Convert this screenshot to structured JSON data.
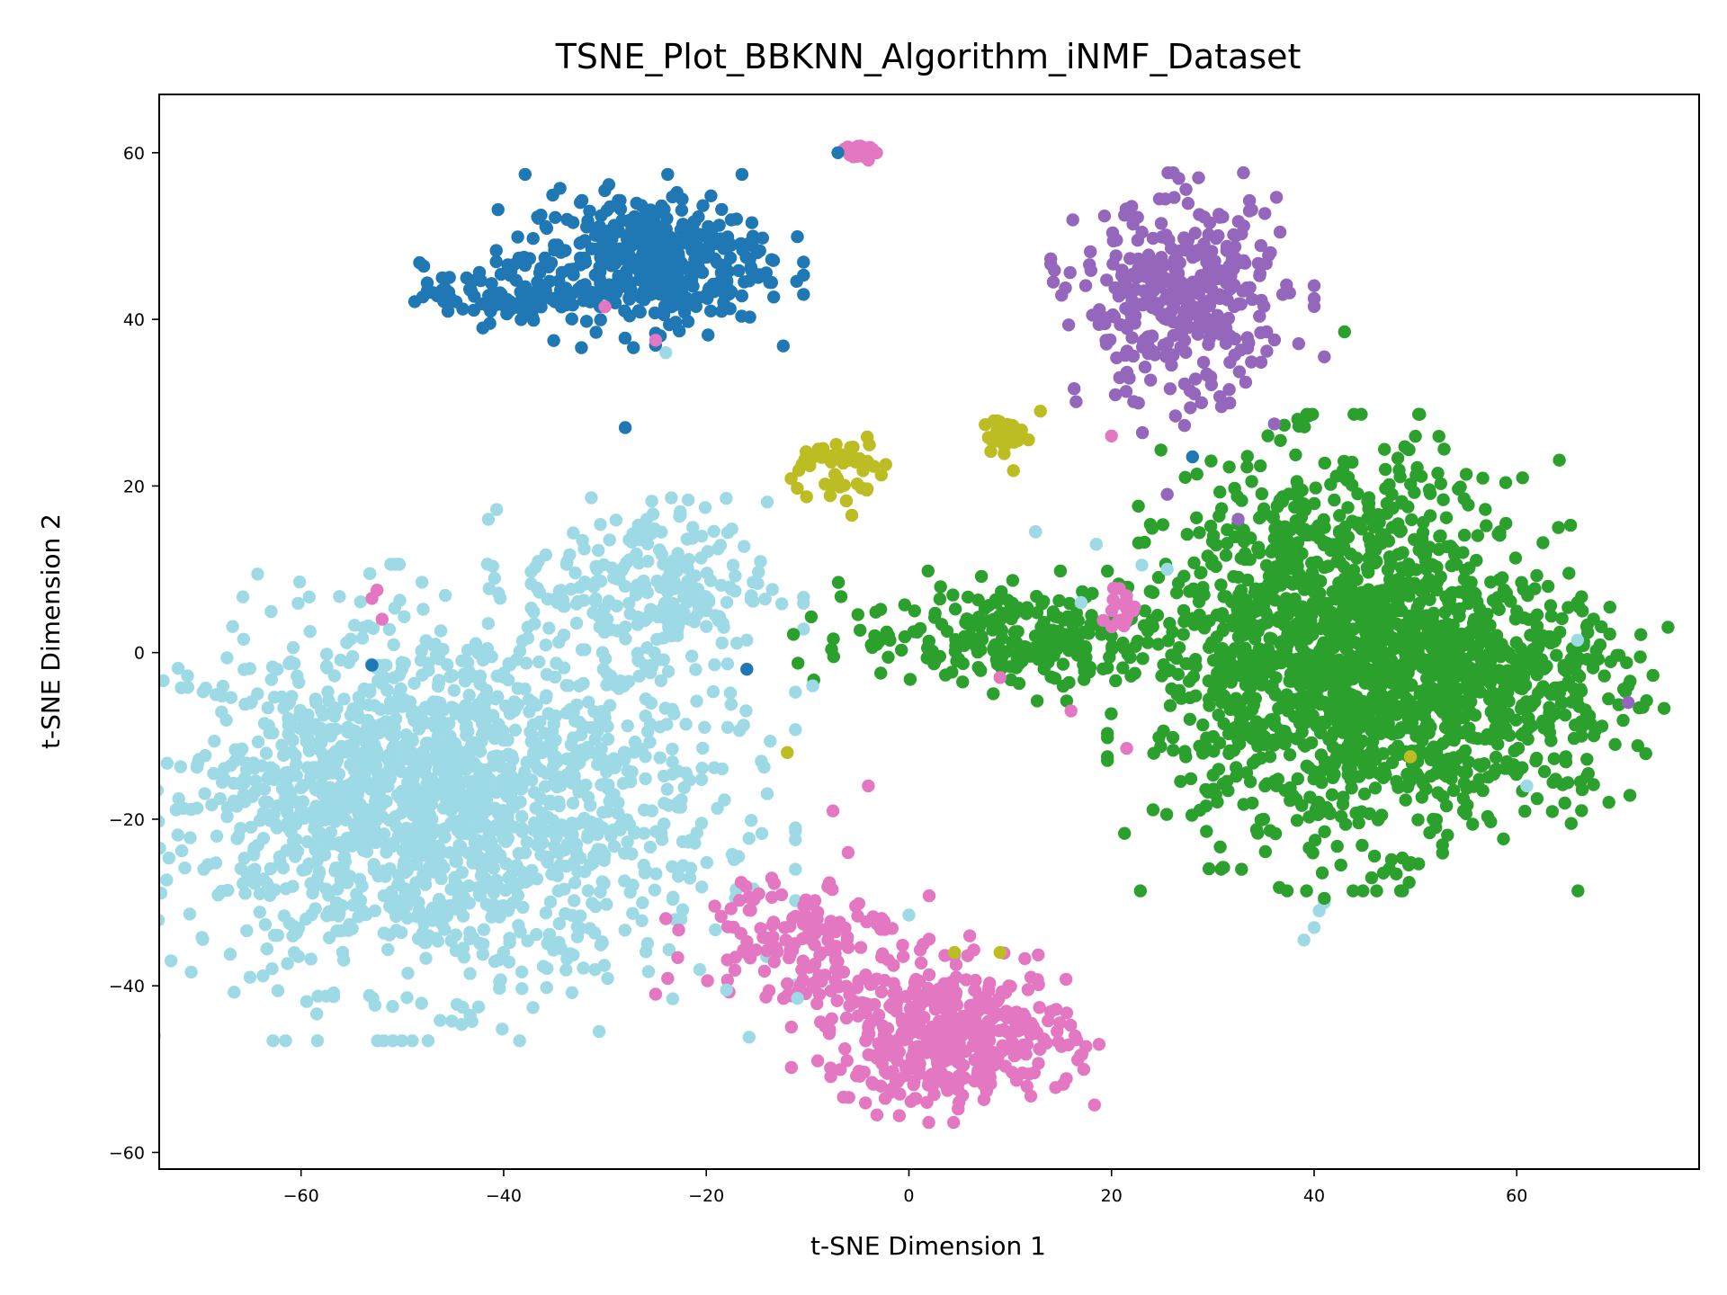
{
  "chart_data": {
    "type": "scatter",
    "title": "TSNE_Plot_BBKNN_Algorithm_iNMF_Dataset",
    "xlabel": "t-SNE Dimension 1",
    "ylabel": "t-SNE Dimension 2",
    "xlim": [
      -74,
      78
    ],
    "ylim": [
      -62,
      67
    ],
    "x_ticks": [
      -60,
      -40,
      -20,
      0,
      20,
      40,
      60
    ],
    "x_tick_labels": [
      "−60",
      "−40",
      "−20",
      "0",
      "20",
      "40",
      "60"
    ],
    "y_ticks": [
      -60,
      -40,
      -20,
      0,
      20,
      40,
      60
    ],
    "y_tick_labels": [
      "−60",
      "−40",
      "−20",
      "0",
      "20",
      "40",
      "60"
    ],
    "grid": false,
    "legend": "none",
    "clusters": [
      {
        "color": "#9edae5",
        "center": [
          -45,
          -18
        ],
        "spread": [
          13,
          11
        ],
        "count": 1500
      },
      {
        "color": "#9edae5",
        "center": [
          -26,
          8
        ],
        "spread": [
          6,
          5
        ],
        "count": 220
      },
      {
        "color": "#9edae5",
        "center": [
          -58,
          -16
        ],
        "spread": [
          6,
          6
        ],
        "count": 180
      },
      {
        "color": "#1f77b4",
        "center": [
          -26,
          47
        ],
        "spread": [
          6,
          4
        ],
        "count": 420
      },
      {
        "color": "#1f77b4",
        "center": [
          -40,
          43
        ],
        "spread": [
          4,
          1.8
        ],
        "count": 100
      },
      {
        "color": "#2ca02c",
        "center": [
          43,
          0
        ],
        "spread": [
          9,
          11
        ],
        "count": 1500
      },
      {
        "color": "#2ca02c",
        "center": [
          58,
          -5
        ],
        "spread": [
          7,
          6
        ],
        "count": 350
      },
      {
        "color": "#2ca02c",
        "center": [
          12,
          2
        ],
        "spread": [
          9,
          3
        ],
        "count": 260
      },
      {
        "color": "#9467bd",
        "center": [
          27,
          42
        ],
        "spread": [
          5,
          6
        ],
        "count": 380
      },
      {
        "color": "#e377c2",
        "center": [
          4,
          -46
        ],
        "spread": [
          6,
          4
        ],
        "count": 450
      },
      {
        "color": "#e377c2",
        "center": [
          -11,
          -34
        ],
        "spread": [
          5,
          4
        ],
        "count": 140
      },
      {
        "color": "#e377c2",
        "center": [
          -5,
          60
        ],
        "spread": [
          0.7,
          0.7
        ],
        "count": 30
      },
      {
        "color": "#e377c2",
        "center": [
          21,
          5
        ],
        "spread": [
          1.2,
          1.2
        ],
        "count": 20
      },
      {
        "color": "#bcbd22",
        "center": [
          -7,
          22
        ],
        "spread": [
          2.2,
          2.2
        ],
        "count": 45
      },
      {
        "color": "#bcbd22",
        "center": [
          11,
          26
        ],
        "spread": [
          2,
          1.6
        ],
        "count": 30
      }
    ],
    "points": [
      {
        "color": "#1f77b4",
        "x": -7,
        "y": 60
      },
      {
        "color": "#1f77b4",
        "x": -28,
        "y": 27
      },
      {
        "color": "#1f77b4",
        "x": -53,
        "y": -1.5
      },
      {
        "color": "#1f77b4",
        "x": -16,
        "y": -2
      },
      {
        "color": "#1f77b4",
        "x": 28,
        "y": 23.5
      },
      {
        "color": "#e377c2",
        "x": -30,
        "y": 41.5
      },
      {
        "color": "#e377c2",
        "x": -25,
        "y": 37.5
      },
      {
        "color": "#e377c2",
        "x": -52.5,
        "y": 7.5
      },
      {
        "color": "#e377c2",
        "x": -53,
        "y": 6.5
      },
      {
        "color": "#e377c2",
        "x": -52,
        "y": 4
      },
      {
        "color": "#e377c2",
        "x": 20,
        "y": 26
      },
      {
        "color": "#e377c2",
        "x": 12.5,
        "y": 14.5
      },
      {
        "color": "#e377c2",
        "x": 9,
        "y": -3
      },
      {
        "color": "#e377c2",
        "x": 16,
        "y": -7
      },
      {
        "color": "#e377c2",
        "x": 21.5,
        "y": -11.5
      },
      {
        "color": "#e377c2",
        "x": -4,
        "y": -16
      },
      {
        "color": "#e377c2",
        "x": -7.5,
        "y": -19
      },
      {
        "color": "#e377c2",
        "x": -6,
        "y": -24
      },
      {
        "color": "#e377c2",
        "x": 6,
        "y": -34
      },
      {
        "color": "#e377c2",
        "x": -25,
        "y": -41
      },
      {
        "color": "#e377c2",
        "x": -9,
        "y": -49
      },
      {
        "color": "#9edae5",
        "x": -24,
        "y": 36
      },
      {
        "color": "#9edae5",
        "x": 12.5,
        "y": 14.5
      },
      {
        "color": "#9edae5",
        "x": 18.5,
        "y": 13
      },
      {
        "color": "#9edae5",
        "x": 23,
        "y": 10.5
      },
      {
        "color": "#9edae5",
        "x": 25.5,
        "y": 10
      },
      {
        "color": "#9edae5",
        "x": 17,
        "y": 6
      },
      {
        "color": "#9edae5",
        "x": 66,
        "y": 1.5
      },
      {
        "color": "#9edae5",
        "x": 61,
        "y": -16
      },
      {
        "color": "#9edae5",
        "x": -9.5,
        "y": -4
      },
      {
        "color": "#9edae5",
        "x": -16,
        "y": 1.5
      },
      {
        "color": "#9edae5",
        "x": 0,
        "y": -31.5
      },
      {
        "color": "#9edae5",
        "x": -11,
        "y": -41.5
      },
      {
        "color": "#9edae5",
        "x": -18,
        "y": -40.5
      },
      {
        "color": "#9edae5",
        "x": 41,
        "y": -30
      },
      {
        "color": "#9edae5",
        "x": 40,
        "y": -33
      },
      {
        "color": "#9edae5",
        "x": 39,
        "y": -34.5
      },
      {
        "color": "#9edae5",
        "x": 40.5,
        "y": -31
      },
      {
        "color": "#9edae5",
        "x": -44,
        "y": -35.5
      },
      {
        "color": "#9edae5",
        "x": -40,
        "y": -36
      },
      {
        "color": "#9467bd",
        "x": 71,
        "y": -6
      },
      {
        "color": "#9467bd",
        "x": 25.5,
        "y": 19
      },
      {
        "color": "#9467bd",
        "x": 32.5,
        "y": 16
      },
      {
        "color": "#9467bd",
        "x": 41,
        "y": 35.5
      },
      {
        "color": "#bcbd22",
        "x": 49.5,
        "y": -12.5
      },
      {
        "color": "#bcbd22",
        "x": 4.5,
        "y": -36
      },
      {
        "color": "#bcbd22",
        "x": 9,
        "y": -36
      },
      {
        "color": "#bcbd22",
        "x": -12,
        "y": -12
      },
      {
        "color": "#2ca02c",
        "x": 66,
        "y": 6
      },
      {
        "color": "#2ca02c",
        "x": 71,
        "y": -4
      },
      {
        "color": "#2ca02c",
        "x": 43,
        "y": 38.5
      },
      {
        "color": "#2ca02c",
        "x": 41,
        "y": -29.5
      },
      {
        "color": "#2ca02c",
        "x": 52,
        "y": -21
      }
    ]
  }
}
